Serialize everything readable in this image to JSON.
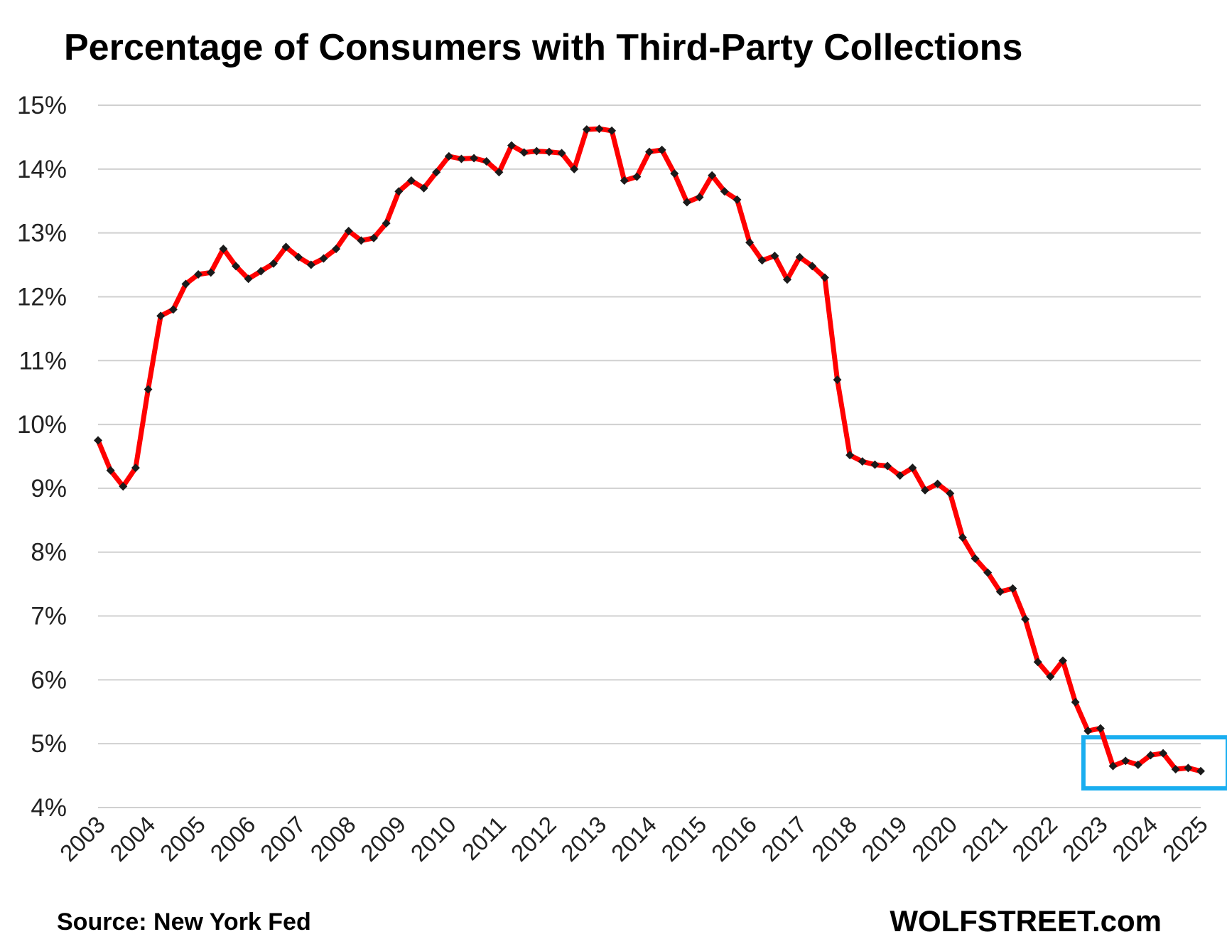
{
  "chart_data": {
    "type": "line",
    "title": "Percentage of Consumers with Third-Party Collections",
    "source": "Source: New York Fed",
    "brand": "WOLFSTREET.com",
    "xlabel": "",
    "ylabel": "",
    "ylim": [
      4,
      15
    ],
    "yticks": [
      "4%",
      "5%",
      "6%",
      "7%",
      "8%",
      "9%",
      "10%",
      "11%",
      "12%",
      "13%",
      "14%",
      "15%"
    ],
    "xticks": [
      "2003",
      "2004",
      "2005",
      "2006",
      "2007",
      "2008",
      "2009",
      "2010",
      "2011",
      "2012",
      "2013",
      "2014",
      "2015",
      "2016",
      "2017",
      "2018",
      "2019",
      "2020",
      "2021",
      "2022",
      "2023",
      "2024",
      "2025"
    ],
    "grid": true,
    "legend": "none",
    "line_color": "#ff0000",
    "marker_color": "#1a1a1a",
    "highlight_color": "#1aaef0",
    "highlight_range": {
      "x": [
        "2023 Q1",
        "2025 Q1"
      ],
      "y": [
        4.3,
        5.1
      ]
    },
    "series": [
      {
        "x": [
          "2003 Q1",
          "2003 Q2",
          "2003 Q3",
          "2003 Q4",
          "2004 Q1",
          "2004 Q2",
          "2004 Q3",
          "2004 Q4",
          "2005 Q1",
          "2005 Q2",
          "2005 Q3",
          "2005 Q4",
          "2006 Q1",
          "2006 Q2",
          "2006 Q3",
          "2006 Q4",
          "2007 Q1",
          "2007 Q2",
          "2007 Q3",
          "2007 Q4",
          "2008 Q1",
          "2008 Q2",
          "2008 Q3",
          "2008 Q4",
          "2009 Q1",
          "2009 Q2",
          "2009 Q3",
          "2009 Q4",
          "2010 Q1",
          "2010 Q2",
          "2010 Q3",
          "2010 Q4",
          "2011 Q1",
          "2011 Q2",
          "2011 Q3",
          "2011 Q4",
          "2012 Q1",
          "2012 Q2",
          "2012 Q3",
          "2012 Q4",
          "2013 Q1",
          "2013 Q2",
          "2013 Q3",
          "2013 Q4",
          "2014 Q1",
          "2014 Q2",
          "2014 Q3",
          "2014 Q4",
          "2015 Q1",
          "2015 Q2",
          "2015 Q3",
          "2015 Q4",
          "2016 Q1",
          "2016 Q2",
          "2016 Q3",
          "2016 Q4",
          "2017 Q1",
          "2017 Q2",
          "2017 Q3",
          "2017 Q4",
          "2018 Q1",
          "2018 Q2",
          "2018 Q3",
          "2018 Q4",
          "2019 Q1",
          "2019 Q2",
          "2019 Q3",
          "2019 Q4",
          "2020 Q1",
          "2020 Q2",
          "2020 Q3",
          "2020 Q4",
          "2021 Q1",
          "2021 Q2",
          "2021 Q3",
          "2021 Q4",
          "2022 Q1",
          "2022 Q2",
          "2022 Q3",
          "2022 Q4",
          "2023 Q1",
          "2023 Q2",
          "2023 Q3",
          "2023 Q4",
          "2024 Q1",
          "2024 Q2",
          "2024 Q3",
          "2024 Q4",
          "2025 Q1"
        ],
        "values": [
          9.75,
          9.28,
          9.03,
          9.32,
          10.55,
          11.7,
          11.8,
          12.2,
          12.35,
          12.38,
          12.75,
          12.48,
          12.28,
          12.4,
          12.52,
          12.78,
          12.62,
          12.5,
          12.6,
          12.75,
          13.03,
          12.88,
          12.92,
          13.15,
          13.65,
          13.82,
          13.7,
          13.95,
          14.2,
          14.16,
          14.17,
          14.12,
          13.95,
          14.37,
          14.26,
          14.28,
          14.27,
          14.25,
          14.0,
          14.62,
          14.63,
          14.6,
          13.82,
          13.88,
          14.27,
          14.3,
          13.93,
          13.48,
          13.56,
          13.9,
          13.65,
          13.52,
          12.85,
          12.57,
          12.64,
          12.27,
          12.62,
          12.48,
          12.3,
          10.7,
          9.52,
          9.42,
          9.37,
          9.35,
          9.2,
          9.32,
          8.97,
          9.07,
          8.92,
          8.23,
          7.9,
          7.68,
          7.38,
          7.43,
          6.95,
          6.28,
          6.05,
          6.3,
          5.65,
          5.2,
          5.24,
          4.65,
          4.73,
          4.67,
          4.82,
          4.85,
          4.6,
          4.62,
          4.57
        ]
      }
    ]
  }
}
